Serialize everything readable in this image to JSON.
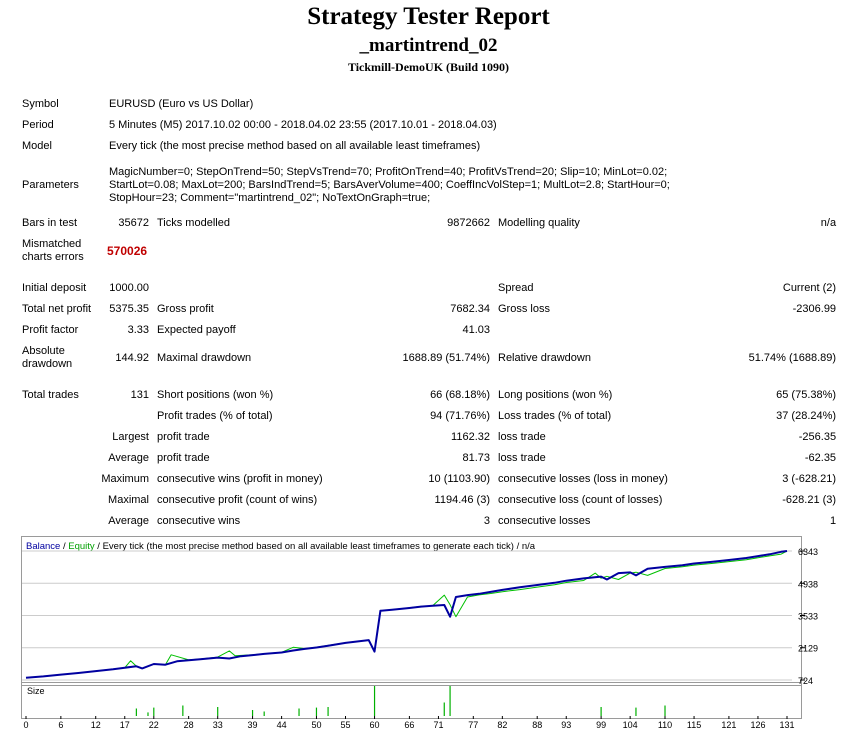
{
  "report": {
    "title": "Strategy Tester Report",
    "expert": "_martintrend_02",
    "server": "Tickmill-DemoUK (Build 1090)"
  },
  "info": {
    "symbol_label": "Symbol",
    "symbol": "EURUSD (Euro vs US Dollar)",
    "period_label": "Period",
    "period": "5 Minutes (M5) 2017.10.02 00:00 - 2018.04.02 23:55 (2017.10.01 - 2018.04.03)",
    "model_label": "Model",
    "model": "Every tick (the most precise method based on all available least timeframes)",
    "parameters_label": "Parameters",
    "parameters": "MagicNumber=0; StepOnTrend=50; StepVsTrend=70; ProfitOnTrend=40; ProfitVsTrend=20; Slip=10; MinLot=0.02; StartLot=0.08; MaxLot=200; BarsIndTrend=5; BarsAverVolume=400; CoeffIncVolStep=1; MultLot=2.8; StartHour=0; StopHour=23; Comment=\"martintrend_02\"; NoTextOnGraph=true;"
  },
  "stats": {
    "bars_label": "Bars in test",
    "bars": "35672",
    "ticks_label": "Ticks modelled",
    "ticks": "9872662",
    "quality_label": "Modelling quality",
    "quality": "n/a",
    "mismatched_label_1": "Mismatched",
    "mismatched_label_2": "charts errors",
    "mismatched": "570026",
    "deposit_label": "Initial deposit",
    "deposit": "1000.00",
    "spread_label": "Spread",
    "spread": "Current (2)",
    "net_label": "Total net profit",
    "net": "5375.35",
    "gross_profit_label": "Gross profit",
    "gross_profit": "7682.34",
    "gross_loss_label": "Gross loss",
    "gross_loss": "-2306.99",
    "pf_label": "Profit factor",
    "pf": "3.33",
    "payoff_label": "Expected payoff",
    "payoff": "41.03",
    "abs_dd_label_1": "Absolute",
    "abs_dd_label_2": "drawdown",
    "abs_dd": "144.92",
    "max_dd_label": "Maximal drawdown",
    "max_dd": "1688.89 (51.74%)",
    "rel_dd_label": "Relative drawdown",
    "rel_dd": "51.74% (1688.89)",
    "total_trades_label": "Total trades",
    "total_trades": "131",
    "short_label": "Short positions (won %)",
    "short": "66 (68.18%)",
    "long_label": "Long positions (won %)",
    "long": "65 (75.38%)",
    "profit_trades_label": "Profit trades (% of total)",
    "profit_trades": "94 (71.76%)",
    "loss_trades_label": "Loss trades (% of total)",
    "loss_trades": "37 (28.24%)",
    "largest_label": "Largest",
    "largest_profit_label": "profit trade",
    "largest_profit": "1162.32",
    "largest_loss_label": "loss trade",
    "largest_loss": "-256.35",
    "average_label": "Average",
    "average_profit_label": "profit trade",
    "average_profit": "81.73",
    "average_loss_label": "loss trade",
    "average_loss": "-62.35",
    "maximum_label": "Maximum",
    "max_cons_wins_label": "consecutive wins (profit in money)",
    "max_cons_wins": "10 (1103.90)",
    "max_cons_losses_label": "consecutive losses (loss in money)",
    "max_cons_losses": "3 (-628.21)",
    "maximal_label": "Maximal",
    "maximal_cons_profit_label": "consecutive profit (count of wins)",
    "maximal_cons_profit": "1194.46 (3)",
    "maximal_cons_loss_label": "consecutive loss (count of losses)",
    "maximal_cons_loss": "-628.21 (3)",
    "average2_label": "Average",
    "avg_cons_wins_label": "consecutive wins",
    "avg_cons_wins": "3",
    "avg_cons_losses_label": "consecutive losses",
    "avg_cons_losses": "1"
  },
  "chart_legend": {
    "balance": "Balance",
    "sep": " / ",
    "equity": "Equity",
    "rest": " / Every tick (the most precise method based on all available least timeframes to generate each tick) / n/a"
  },
  "chart_data": {
    "type": "line",
    "ylim": [
      724,
      6343
    ],
    "y_ticks": [
      6343,
      4938,
      3533,
      2129,
      724
    ],
    "x_range": [
      0,
      131
    ],
    "x_ticks": [
      0,
      6,
      12,
      17,
      22,
      28,
      33,
      39,
      44,
      50,
      55,
      60,
      66,
      71,
      77,
      82,
      88,
      93,
      99,
      104,
      110,
      115,
      121,
      126,
      131
    ],
    "colors": {
      "balance": "#0000a0",
      "equity": "#00c000",
      "volume": "#00b000",
      "grid": "#cccccc"
    },
    "series": [
      {
        "name": "Balance",
        "x": [
          0,
          3,
          6,
          9,
          12,
          15,
          17,
          19,
          20,
          22,
          24,
          26,
          28,
          30,
          33,
          35,
          37,
          39,
          41,
          44,
          46,
          48,
          50,
          52,
          55,
          57,
          59,
          60,
          61,
          63,
          66,
          68,
          70,
          72,
          73,
          74,
          76,
          78,
          80,
          82,
          85,
          88,
          91,
          93,
          96,
          99,
          100,
          102,
          104,
          105,
          107,
          110,
          113,
          115,
          118,
          121,
          124,
          126,
          128,
          130,
          131
        ],
        "y": [
          820,
          880,
          960,
          1030,
          1110,
          1190,
          1260,
          1320,
          1230,
          1420,
          1390,
          1540,
          1580,
          1630,
          1700,
          1660,
          1760,
          1810,
          1860,
          1920,
          2010,
          2080,
          2140,
          2220,
          2340,
          2400,
          2460,
          1960,
          3740,
          3780,
          3860,
          3920,
          3960,
          3990,
          3480,
          4340,
          4420,
          4480,
          4560,
          4650,
          4760,
          4860,
          4960,
          5050,
          5150,
          5230,
          5100,
          5380,
          5410,
          5280,
          5570,
          5650,
          5720,
          5800,
          5870,
          5950,
          6040,
          6120,
          6200,
          6310,
          6343
        ]
      },
      {
        "name": "Equity",
        "x": [
          0,
          3,
          6,
          9,
          12,
          15,
          17,
          18,
          19,
          20,
          22,
          24,
          25,
          28,
          30,
          33,
          35,
          36,
          39,
          41,
          44,
          46,
          48,
          50,
          52,
          55,
          57,
          59,
          60,
          61,
          63,
          66,
          68,
          70,
          72,
          73,
          74,
          76,
          78,
          80,
          82,
          85,
          88,
          91,
          93,
          96,
          98,
          99,
          100,
          102,
          104,
          105,
          107,
          110,
          113,
          115,
          118,
          121,
          124,
          126,
          128,
          130,
          131
        ],
        "y": [
          820,
          880,
          960,
          1030,
          1110,
          1190,
          1260,
          1560,
          1320,
          1230,
          1420,
          1390,
          1820,
          1600,
          1640,
          1720,
          1990,
          1780,
          1820,
          1870,
          1930,
          2150,
          2090,
          2150,
          2230,
          2350,
          2400,
          2460,
          1960,
          3740,
          3790,
          3870,
          3930,
          3960,
          4420,
          4000,
          3480,
          4340,
          4430,
          4490,
          4570,
          4660,
          4770,
          4870,
          4970,
          5060,
          5380,
          5160,
          5240,
          5100,
          5380,
          5420,
          5280,
          5580,
          5660,
          5730,
          5800,
          5880,
          5960,
          6050,
          6130,
          6210,
          6343
        ]
      },
      {
        "name": "Size",
        "x": [
          19,
          21,
          22,
          27,
          33,
          39,
          41,
          47,
          50,
          52,
          60,
          72,
          73,
          99,
          105,
          110
        ],
        "y": [
          0.25,
          0.12,
          0.28,
          0.35,
          0.3,
          0.2,
          0.15,
          0.25,
          0.28,
          0.3,
          1.0,
          0.45,
          1.0,
          0.3,
          0.28,
          0.35
        ]
      }
    ]
  }
}
